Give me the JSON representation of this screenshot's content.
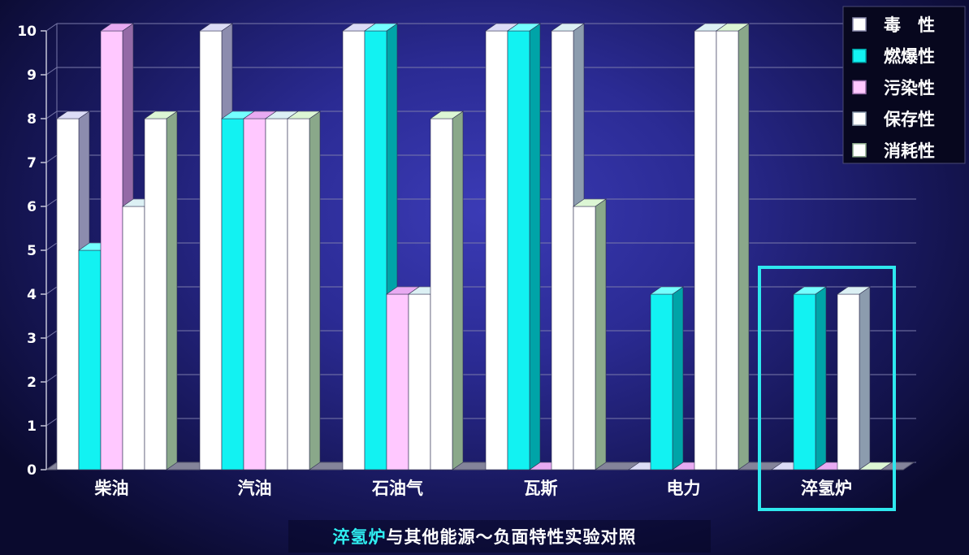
{
  "chart_data": {
    "type": "bar",
    "bar_style": "3d-clustered",
    "title": {
      "highlight": "淬氢炉",
      "rest": "与其他能源～负面特性实验对照"
    },
    "categories": [
      "柴油",
      "汽油",
      "石油气",
      "瓦斯",
      "电力",
      "淬氢炉"
    ],
    "series": [
      {
        "name": "毒　性",
        "values": [
          8,
          10,
          10,
          10,
          0,
          0
        ],
        "color": "#ffffff",
        "side_color": "#8c8cae",
        "top_color": "#dcdcf6"
      },
      {
        "name": "燃爆性",
        "values": [
          5,
          8,
          10,
          10,
          4,
          4
        ],
        "color": "#12f2f2",
        "side_color": "#00a4a8",
        "top_color": "#74ffff"
      },
      {
        "name": "污染性",
        "values": [
          10,
          8,
          4,
          0,
          0,
          0
        ],
        "color": "#ffc8ff",
        "side_color": "#946aa6",
        "top_color": "#e8aaf2"
      },
      {
        "name": "保存性",
        "values": [
          6,
          8,
          4,
          10,
          10,
          4
        ],
        "color": "#ffffff",
        "side_color": "#8c9cae",
        "top_color": "#dcf0f4"
      },
      {
        "name": "消耗性",
        "values": [
          8,
          8,
          8,
          6,
          10,
          0
        ],
        "color": "#ffffff",
        "side_color": "#8aa88a",
        "top_color": "#dcf6d4"
      }
    ],
    "ylim": [
      0,
      10
    ],
    "yticks": [
      0,
      1,
      2,
      3,
      4,
      5,
      6,
      7,
      8,
      9,
      10
    ],
    "grid": true,
    "legend": "top-right",
    "highlight_category_index": 5,
    "highlight_color": "#2ee8ee"
  }
}
